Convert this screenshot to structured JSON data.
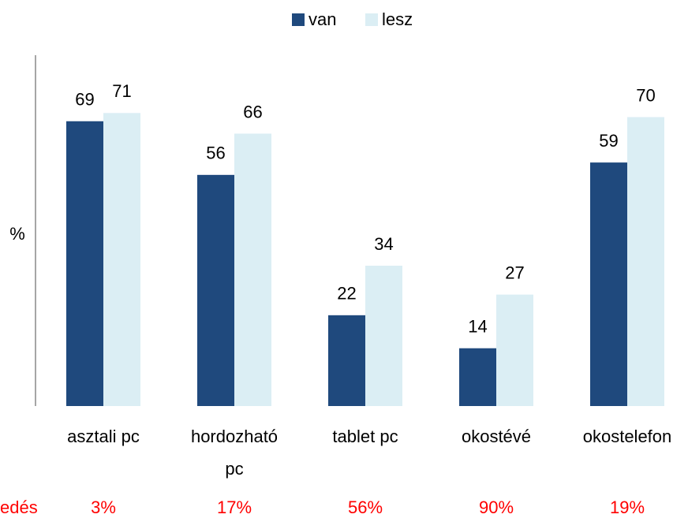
{
  "chart_data": {
    "type": "bar",
    "categories": [
      "asztali pc",
      "hordozható pc",
      "tablet pc",
      "okostévé",
      "okostelefon"
    ],
    "series": [
      {
        "name": "van",
        "color": "#1f497d",
        "values": [
          69,
          56,
          22,
          14,
          59
        ]
      },
      {
        "name": "lesz",
        "color": "#dbeef4",
        "values": [
          71,
          66,
          34,
          27,
          70
        ]
      }
    ],
    "ylabel": "%",
    "ylim": [
      0,
      85
    ],
    "legend": "top",
    "annotations": {
      "label": "edés",
      "texts": [
        "3%",
        "17%",
        "56%",
        "90%",
        "19%"
      ],
      "color": "#ff0000"
    }
  }
}
